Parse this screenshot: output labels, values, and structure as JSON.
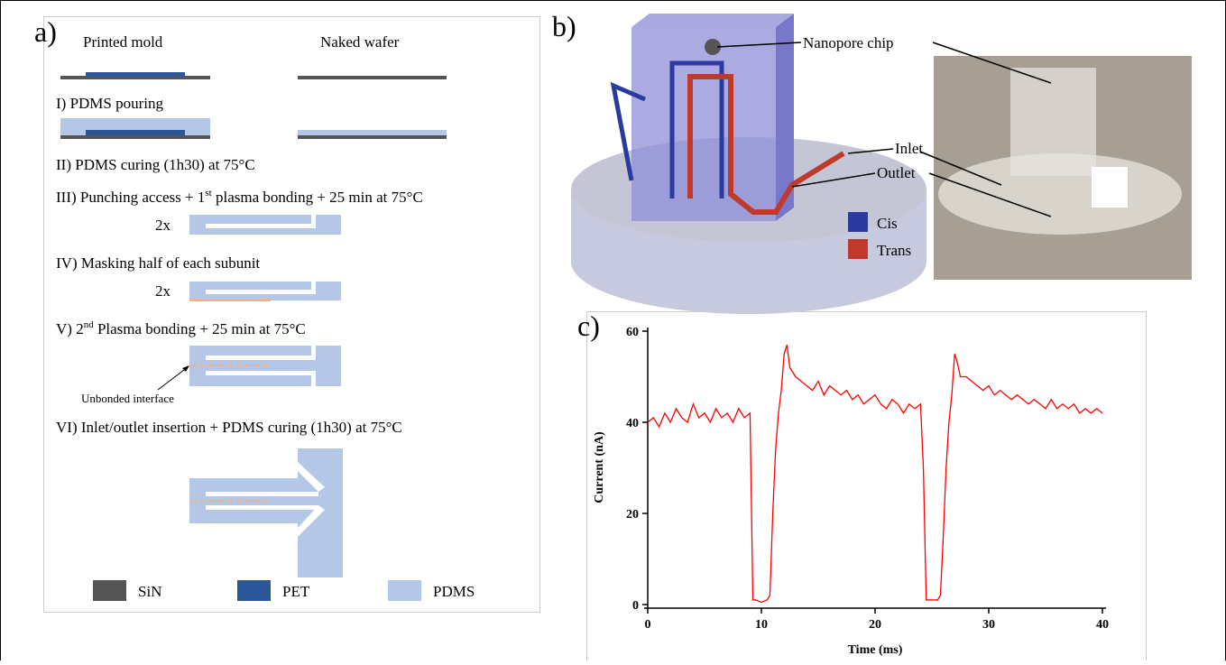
{
  "panel_a": {
    "label": "a)",
    "column_titles": [
      "Printed mold",
      "Naked wafer"
    ],
    "steps": [
      {
        "parts": [
          "I) PDMS pouring"
        ]
      },
      {
        "parts": [
          "II) PDMS curing (1h30) at 75°C"
        ]
      },
      {
        "parts": [
          "III) Punching access + 1",
          "st",
          " plasma bonding + 25 min at 75°C"
        ]
      },
      {
        "parts": [
          "IV) Masking half of each subunit"
        ]
      },
      {
        "parts": [
          "V) 2",
          "nd",
          " Plasma bonding + 25 min at 75°C"
        ]
      },
      {
        "parts": [
          "VI) Inlet/outlet insertion + PDMS curing (1h30) at 75°C"
        ]
      }
    ],
    "multipliers": [
      "2x",
      "2x"
    ],
    "annotation": "Unbonded interface",
    "legend": [
      {
        "name": "SiN",
        "color": "#555555"
      },
      {
        "name": "PET",
        "color": "#2b579a"
      },
      {
        "name": "PDMS",
        "color": "#b4c7e7"
      }
    ]
  },
  "panel_b": {
    "label": "b)",
    "callouts": [
      "Nanopore chip",
      "Inlet",
      "Outlet"
    ],
    "legend": [
      {
        "name": "Cis",
        "color": "#2b3a9e"
      },
      {
        "name": "Trans",
        "color": "#c0392b"
      }
    ]
  },
  "chart_data": {
    "type": "line",
    "label": "c)",
    "x_label": "Time (ms)",
    "y_label": "Current (nA)",
    "color": "#ff0000",
    "x": [
      0,
      0.5,
      1,
      1.5,
      2,
      2.5,
      3,
      3.5,
      4,
      4.5,
      5,
      5.5,
      6,
      6.5,
      7,
      7.5,
      8,
      8.5,
      9,
      9.25,
      9.5,
      10,
      10.5,
      10.75,
      11,
      11.25,
      11.5,
      11.75,
      12,
      12.25,
      12.5,
      13,
      13.5,
      14,
      14.5,
      15,
      15.5,
      16,
      16.5,
      17,
      17.5,
      18,
      18.5,
      19,
      19.5,
      20,
      20.5,
      21,
      21.5,
      22,
      22.5,
      23,
      23.5,
      24,
      24.25,
      24.5,
      25,
      25.5,
      25.75,
      26,
      26.25,
      26.5,
      26.75,
      27,
      27.25,
      27.5,
      28,
      28.5,
      29,
      29.5,
      30,
      30.5,
      31,
      31.5,
      32,
      32.5,
      33,
      33.5,
      34,
      34.5,
      35,
      35.5,
      36,
      36.5,
      37,
      37.5,
      38,
      38.5,
      39,
      39.5,
      40
    ],
    "values": [
      40,
      41,
      39,
      42,
      40,
      43,
      41,
      40,
      44,
      41,
      42,
      40,
      43,
      41,
      42,
      40,
      43,
      41,
      42,
      1,
      1,
      0.5,
      1,
      2,
      20,
      34,
      42,
      47,
      55,
      57,
      52,
      50,
      49,
      48,
      47,
      49,
      46,
      48,
      47,
      46,
      47,
      45,
      46,
      44,
      45,
      46,
      44,
      43,
      45,
      44,
      42,
      44,
      43,
      44,
      30,
      1,
      1,
      1,
      2,
      15,
      30,
      40,
      46,
      55,
      53,
      50,
      50,
      49,
      48,
      47,
      48,
      46,
      47,
      46,
      45,
      46,
      45,
      44,
      45,
      44,
      43,
      45,
      43,
      44,
      43,
      44,
      42,
      43,
      42,
      43,
      42
    ],
    "xlim": [
      0,
      40
    ],
    "xticks": [
      0,
      10,
      20,
      30,
      40
    ],
    "ylim": [
      0,
      60
    ],
    "yticks": [
      0,
      20,
      40,
      60
    ]
  }
}
